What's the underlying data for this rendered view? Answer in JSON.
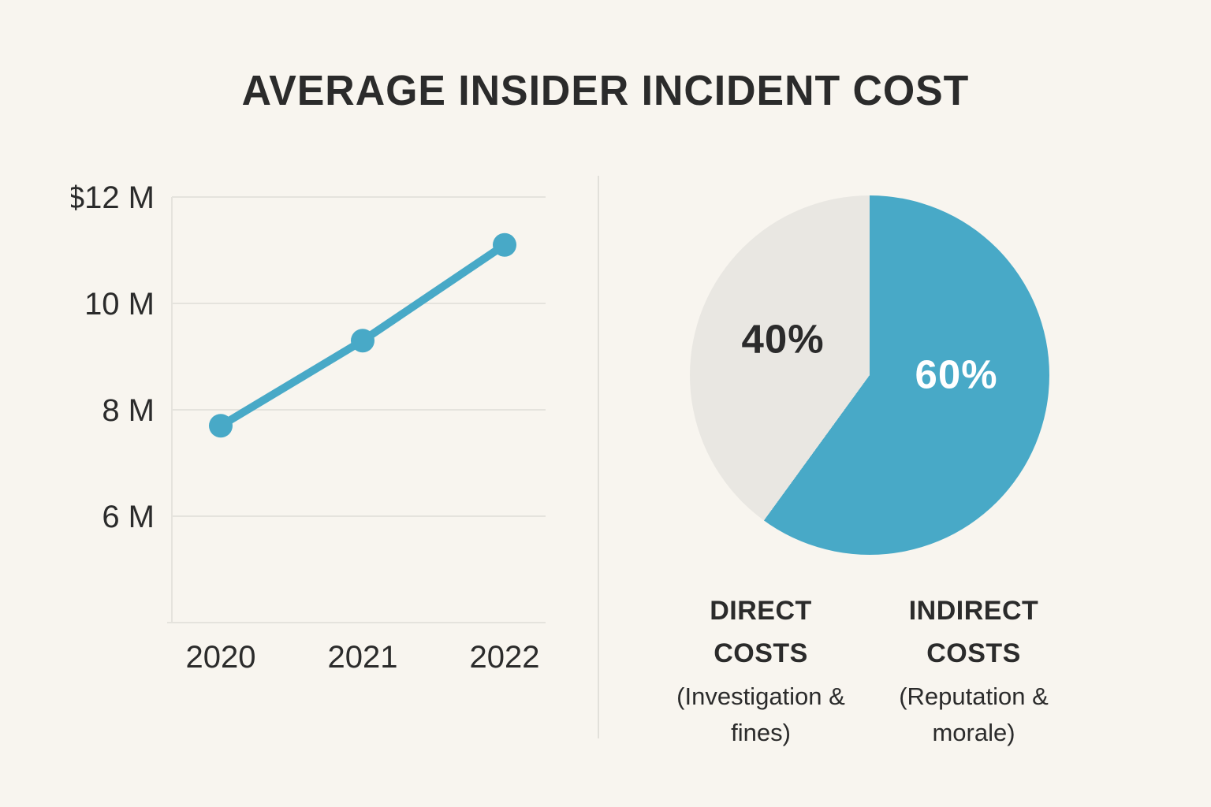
{
  "page": {
    "background": "#F8F5EF",
    "text_color": "#2B2B2B",
    "accent_color": "#48A9C7",
    "neutral_slice_color": "#E9E7E2",
    "grid_color": "#E5E3DD",
    "divider_color": "#E2E0DA"
  },
  "title": "AVERAGE INSIDER INCIDENT COST",
  "chart_data": [
    {
      "type": "line",
      "title": "Average insider incident cost by year",
      "categories": [
        "2020",
        "2021",
        "2022"
      ],
      "series": [
        {
          "name": "Average insider incident cost",
          "values": [
            7.7,
            9.3,
            11.1
          ]
        }
      ],
      "unit": "million USD",
      "ylim": [
        4,
        12.3
      ],
      "yticks": [
        {
          "value": 12,
          "label": "$12 M"
        },
        {
          "value": 10,
          "label": "10 M"
        },
        {
          "value": 8,
          "label": "8 M"
        },
        {
          "value": 6,
          "label": "6 M"
        }
      ],
      "xlabel": "",
      "ylabel": "",
      "grid": true,
      "legend_position": "none",
      "line_color": "#48A9C7",
      "marker": "circle"
    },
    {
      "type": "pie",
      "start_angle_deg": 0,
      "direction": "clockwise",
      "slices": [
        {
          "label": "INDIRECT COSTS",
          "sublabel": "(Reputation & morale)",
          "value_pct": 60,
          "display": "60%",
          "color": "#48A9C7",
          "label_color": "#FFFFFF"
        },
        {
          "label": "DIRECT COSTS",
          "sublabel": "(Investigation & fines)",
          "value_pct": 40,
          "display": "40%",
          "color": "#E9E7E2",
          "label_color": "#2B2B2B"
        }
      ]
    }
  ]
}
